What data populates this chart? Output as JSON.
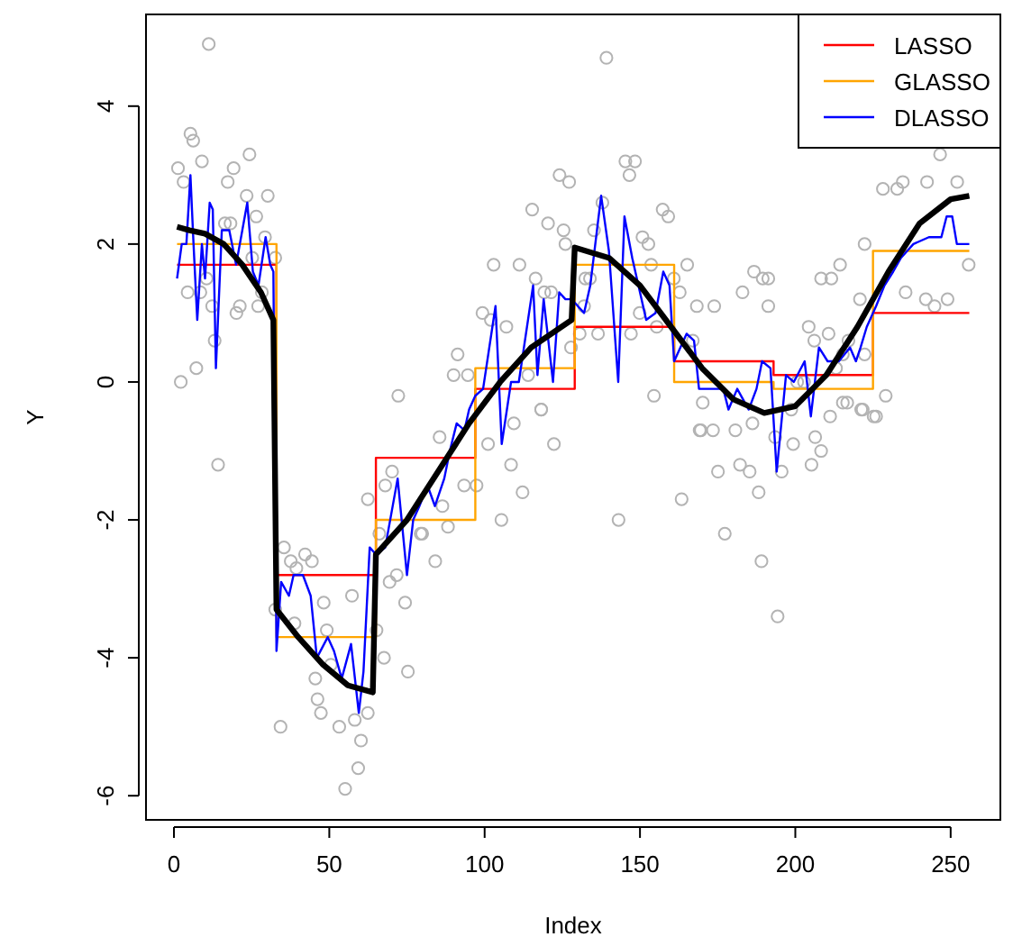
{
  "chart_data": {
    "type": "line",
    "xlabel": "Index",
    "ylabel": "Y",
    "xlim": [
      -9,
      266
    ],
    "ylim": [
      -6.35,
      5.33
    ],
    "xticks": [
      0,
      50,
      100,
      150,
      200,
      250
    ],
    "yticks": [
      -6,
      -4,
      -2,
      0,
      2,
      4
    ],
    "grid": false,
    "legend": "top right",
    "series": [
      {
        "type": "scatter",
        "color": "#b3b3b3",
        "marker": "circle",
        "x": [
          11.2,
          5.3,
          6.2,
          1.3,
          3.1,
          9,
          19.2,
          24.3,
          17.3,
          23.4,
          30.2,
          26.5,
          16.4,
          18.2,
          29.3,
          32.6,
          25.2,
          10.5,
          4.4,
          8.5,
          28.3,
          21.2,
          12.3,
          27.1,
          20.1,
          13.1,
          2.2,
          7.2,
          72.2,
          14.2,
          35.4,
          37.6,
          39.4,
          42.2,
          44.4,
          32.6,
          38.8,
          48.2,
          57.3,
          49.2,
          50.5,
          45.5,
          46.2,
          47.3,
          34.3,
          53.2,
          58.2,
          60.2,
          59.3,
          55.1,
          62.4,
          65.2,
          67.6,
          75.3,
          62.4,
          66.1,
          69.4,
          71.7,
          74.4,
          70.2,
          68,
          79.4,
          85.5,
          86.4,
          88.2,
          84.1,
          79.9,
          93.4,
          97.4,
          101.1,
          108.5,
          105.4,
          122.3,
          112.2,
          118.2,
          143.1,
          163.4,
          169.2,
          109.4,
          139.2,
          145.3,
          148.4,
          146.6,
          124.1,
          127.2,
          115.3,
          120.4,
          125.4,
          126,
          135.2,
          137.9,
          157.3,
          159.1,
          150.8,
          152.7,
          102.9,
          111.2,
          116.4,
          119.2,
          121.4,
          133.9,
          153.6,
          165.2,
          160.9,
          162.8,
          168.3,
          99.3,
          102,
          107,
          149.9,
          132,
          136.5,
          130.6,
          147.1,
          155.4,
          167,
          91.3,
          90,
          94.6,
          114,
          118.2,
          154.5,
          127.8,
          132.4,
          170.2,
          246.6,
          252.1,
          242.4,
          234.6,
          228.2,
          232.8,
          222.3,
          214.4,
          211.6,
          208.3,
          189.5,
          186.7,
          191.3,
          173.9,
          183,
          191.3,
          220.8,
          235.5,
          242,
          249,
          244.8,
          255.8,
          204.3,
          210.7,
          206.1,
          217.1,
          222.3,
          213.1,
          215.3,
          200.6,
          202.8,
          198.7,
          216.7,
          221.7,
          226,
          229.1,
          180.7,
          169.6,
          173.5,
          186.2,
          175.1,
          182.2,
          185.3,
          188.2,
          177.3,
          189.1,
          194.3,
          193.5,
          195.6,
          199.3,
          205.2,
          206.4,
          208.3,
          211.2,
          215.3,
          221.2,
          225.2
        ],
        "values": [
          4.9,
          3.6,
          3.5,
          3.1,
          2.9,
          3.2,
          3.1,
          3.3,
          2.9,
          2.7,
          2.7,
          2.4,
          2.3,
          2.3,
          2.1,
          1.8,
          1.8,
          1.5,
          1.3,
          1.3,
          1.3,
          1.1,
          1.1,
          1.1,
          1,
          0.6,
          0,
          0.2,
          -0.2,
          -1.2,
          -2.4,
          -2.6,
          -2.7,
          -2.5,
          -2.6,
          -3.3,
          -3.5,
          -3.2,
          -3.1,
          -3.6,
          -4.1,
          -4.3,
          -4.6,
          -4.8,
          -5,
          -5,
          -4.9,
          -5.2,
          -5.6,
          -5.9,
          -4.8,
          -3.6,
          -4,
          -4.2,
          -1.7,
          -2.2,
          -2.9,
          -2.8,
          -3.2,
          -1.3,
          -1.5,
          -2.2,
          -0.8,
          -1.8,
          -2.1,
          -2.6,
          -2.2,
          -1.5,
          -1.5,
          -0.9,
          -1.2,
          -2,
          -0.9,
          -1.6,
          -0.4,
          -2,
          -1.7,
          -0.7,
          -0.6,
          4.7,
          3.2,
          3.2,
          3,
          3,
          2.9,
          2.5,
          2.3,
          2.2,
          2,
          2.2,
          2.6,
          2.5,
          2.4,
          2.1,
          2,
          1.7,
          1.7,
          1.5,
          1.3,
          1.3,
          1.5,
          1.7,
          1.7,
          1.5,
          1.3,
          1.1,
          1,
          0.9,
          0.8,
          1,
          1.1,
          0.7,
          0.7,
          0.7,
          0.8,
          0.6,
          0.4,
          0.1,
          0.1,
          0.1,
          -0.4,
          -0.2,
          0.5,
          1.5,
          -0.3,
          3.3,
          2.9,
          2.9,
          2.9,
          2.8,
          2.8,
          2,
          1.7,
          1.5,
          1.5,
          1.5,
          1.6,
          1.5,
          1.1,
          1.3,
          1.1,
          1.2,
          1.3,
          1.2,
          1.2,
          1.1,
          1.7,
          0.8,
          0.7,
          0.6,
          0.6,
          0.4,
          0.2,
          0.4,
          0,
          0,
          -0.4,
          -0.3,
          -0.4,
          -0.5,
          -0.2,
          -0.7,
          -0.7,
          -0.7,
          -0.6,
          -1.3,
          -1.2,
          -1.3,
          -1.6,
          -2.2,
          -2.6,
          -3.4,
          -0.8,
          -1.3,
          -0.9,
          -1.2,
          -0.8,
          -1,
          -0.5,
          -0.3,
          -0.4,
          -0.5
        ]
      },
      {
        "type": "step",
        "name": "LASSO",
        "color": "#ff0000",
        "x": [
          1,
          33,
          65,
          97,
          129,
          161,
          193,
          225,
          256
        ],
        "values": [
          1.7,
          -2.8,
          -1.1,
          -0.1,
          0.8,
          0.3,
          0.1,
          1,
          1
        ]
      },
      {
        "type": "step",
        "name": "GLASSO",
        "color": "#ffa500",
        "x": [
          1,
          33,
          65,
          97,
          129,
          161,
          193,
          225,
          256
        ],
        "values": [
          2,
          -3.7,
          -2,
          0.2,
          1.7,
          0,
          -0.1,
          1.9,
          1.9
        ]
      },
      {
        "name": "DLASSO",
        "color": "#0000ff",
        "x": [
          1,
          2.5,
          4,
          5.3,
          6.3,
          7.5,
          9,
          10,
          11.5,
          12.5,
          13.5,
          15.4,
          17.8,
          20,
          23.6,
          25.4,
          27.2,
          29.5,
          31,
          32,
          33,
          34.5,
          37,
          38.5,
          41.5,
          44,
          46,
          49.5,
          51.5,
          54,
          57,
          59.5,
          61,
          63,
          65,
          68,
          72,
          75,
          77,
          79,
          81.6,
          84,
          87,
          88.8,
          91,
          93.5,
          95,
          97,
          99.5,
          103.5,
          105.5,
          108.5,
          111,
          115.6,
          117,
          119,
          122,
          124,
          126,
          128,
          130,
          132,
          134,
          137.5,
          140,
          143,
          145,
          147.5,
          152,
          155,
          157.5,
          159.5,
          161,
          165,
          167.4,
          169,
          176.8,
          178.5,
          181.3,
          185,
          187.5,
          189.3,
          192,
          194,
          197,
          199.5,
          203,
          205,
          207.6,
          210.4,
          214,
          217.6,
          219.5,
          221,
          223,
          226,
          228.7,
          231.5,
          234,
          238,
          243,
          247,
          248.7,
          250.5,
          252,
          256
        ],
        "values": [
          1.5,
          2,
          2,
          3,
          2,
          0.9,
          2,
          1.5,
          2.6,
          2.5,
          0.2,
          2.2,
          2.2,
          1.7,
          2.6,
          1.6,
          1.4,
          2.1,
          1.7,
          1.6,
          -3.9,
          -2.9,
          -3.1,
          -2.8,
          -2.8,
          -3.1,
          -4,
          -3.7,
          -3.9,
          -4.3,
          -3.8,
          -4.8,
          -4.2,
          -2.4,
          -2.5,
          -2.4,
          -1.4,
          -2.8,
          -2,
          -1.8,
          -1.5,
          -1.8,
          -1.4,
          -1,
          -0.6,
          -0.7,
          -0.4,
          -0.2,
          -0.1,
          1.1,
          -0.9,
          0,
          0,
          1.4,
          0.1,
          1.2,
          0,
          1.3,
          1.2,
          1.2,
          1.1,
          1,
          1.4,
          2.7,
          1.9,
          0,
          2.4,
          1.8,
          0.9,
          1,
          1.6,
          1.4,
          0.3,
          0.7,
          0.6,
          -0.1,
          -0.1,
          -0.4,
          -0.1,
          -0.4,
          -0.1,
          0.3,
          0.2,
          -1.3,
          0.1,
          0,
          0.3,
          -0.5,
          0.5,
          0.3,
          0.3,
          0.5,
          0.3,
          0.5,
          0.8,
          1.1,
          1.4,
          1.6,
          1.8,
          2,
          2.1,
          2.1,
          2.4,
          2.4,
          2,
          2
        ]
      },
      {
        "color": "#000000",
        "x": [
          1,
          5,
          10,
          16,
          22,
          28,
          32,
          33,
          40,
          48,
          56,
          64,
          65,
          75,
          85,
          95,
          105,
          115,
          128,
          129,
          140,
          150,
          160,
          170,
          180,
          190,
          200,
          210,
          220,
          230,
          240,
          250,
          256
        ],
        "values": [
          2.25,
          2.2,
          2.15,
          2,
          1.7,
          1.3,
          0.9,
          -3.3,
          -3.7,
          -4.1,
          -4.4,
          -4.5,
          -2.5,
          -2,
          -1.3,
          -0.6,
          0,
          0.5,
          0.9,
          1.95,
          1.8,
          1.4,
          0.8,
          0.2,
          -0.25,
          -0.45,
          -0.35,
          0.1,
          0.8,
          1.6,
          2.3,
          2.65,
          2.7
        ]
      }
    ]
  }
}
